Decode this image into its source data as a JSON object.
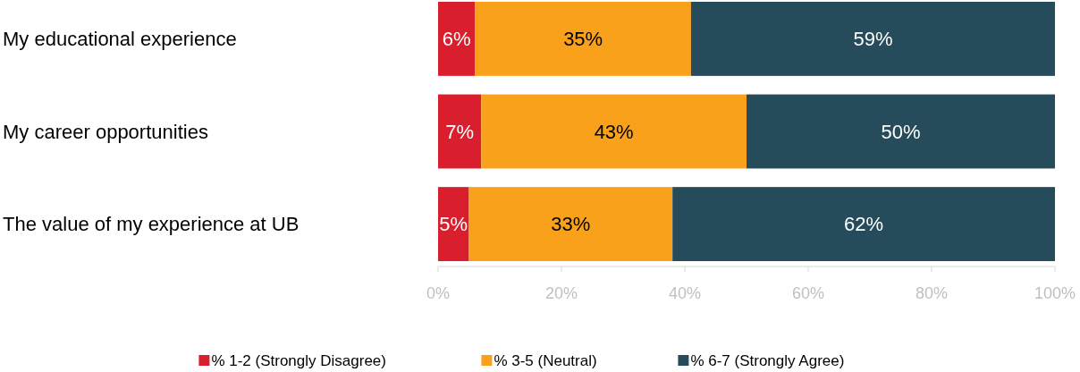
{
  "chart_data": {
    "type": "bar",
    "orientation": "horizontal",
    "stacked": true,
    "categories": [
      "My educational experience",
      "My career opportunities",
      "The value of my experience at UB"
    ],
    "series": [
      {
        "name": "% 1-2 (Strongly Disagree)",
        "color": "#d91f2d",
        "values": [
          6,
          7,
          5
        ],
        "value_labels": [
          "6%",
          "7%",
          "5%"
        ]
      },
      {
        "name": "% 3-5 (Neutral)",
        "color": "#f9a11b",
        "values": [
          35,
          43,
          33
        ],
        "value_labels": [
          "35%",
          "43%",
          "33%"
        ]
      },
      {
        "name": "% 6-7 (Strongly Agree)",
        "color": "#264b5a",
        "values": [
          59,
          50,
          62
        ],
        "value_labels": [
          "59%",
          "50%",
          "62%"
        ]
      }
    ],
    "xlim": [
      0,
      100
    ],
    "xticks": [
      {
        "value": 0,
        "label": "0%"
      },
      {
        "value": 20,
        "label": "20%"
      },
      {
        "value": 40,
        "label": "40%"
      },
      {
        "value": 60,
        "label": "60%"
      },
      {
        "value": 80,
        "label": "80%"
      },
      {
        "value": 100,
        "label": "100%"
      }
    ],
    "grid": false,
    "legend": "bottom"
  }
}
